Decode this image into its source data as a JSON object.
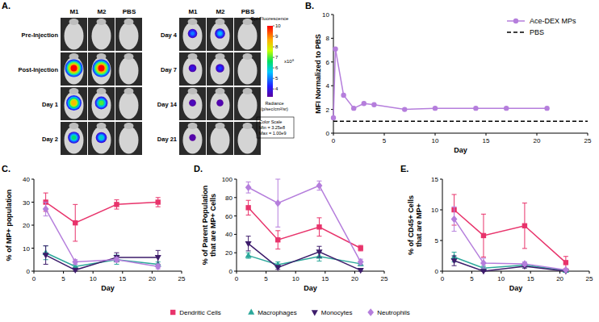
{
  "imaging": {
    "panel": "A.",
    "columns": [
      "M1",
      "M2",
      "PBS"
    ],
    "rows": [
      {
        "label": "Pre-Injection",
        "signal": [
          null,
          null,
          null
        ]
      },
      {
        "label": "Post-Injection",
        "signal": [
          10,
          10,
          null
        ]
      },
      {
        "label": "Day 1",
        "signal": [
          8.5,
          7,
          null
        ]
      },
      {
        "label": "Day 2",
        "signal": [
          6.5,
          6,
          null
        ]
      },
      {
        "label": "Day 4",
        "signal": [
          5,
          5.5,
          null
        ]
      },
      {
        "label": "Day 7",
        "signal": [
          4,
          4.5,
          null
        ]
      },
      {
        "label": "Day 14",
        "signal": [
          3.6,
          3.5,
          null
        ]
      },
      {
        "label": "Day 21",
        "signal": [
          3.4,
          null,
          null
        ]
      }
    ],
    "colorbar": {
      "title": "Epi-Fluorescence",
      "exponent": "x10⁸",
      "range": [
        3.25,
        10
      ],
      "ticks": [
        4,
        5,
        6,
        7,
        8,
        9,
        10
      ],
      "unit": "Radiance\n(p/sec/cm²/sr)",
      "scale_title": "Color Scale",
      "scale_lines": [
        "Min = 3.25e8",
        "Max = 1.00e9"
      ]
    }
  },
  "chart_data": [
    {
      "type": "line",
      "panel": "B.",
      "x_label": "Day",
      "y_label": "MFI Normalized to PBS",
      "xlim": [
        0,
        25
      ],
      "xticks": [
        0,
        5,
        10,
        15,
        20,
        25
      ],
      "ylim": [
        0,
        10
      ],
      "yticks": [
        0,
        2,
        4,
        6,
        8,
        10
      ],
      "legend": "top-right",
      "series": [
        {
          "name": "Ace-DEX MPs",
          "color": "#B57EDC",
          "marker": "circle",
          "line_style": "solid",
          "x": [
            0,
            0.2,
            1,
            2,
            3,
            4,
            7,
            10,
            14,
            17,
            21
          ],
          "values": [
            1.3,
            7.1,
            3.2,
            2.1,
            2.5,
            2.4,
            2.0,
            2.1,
            2.1,
            2.1,
            2.1
          ]
        },
        {
          "name": "PBS",
          "color": "#000000",
          "marker": "none",
          "line_style": "dashed",
          "x": [
            0,
            25
          ],
          "values": [
            1,
            1
          ]
        }
      ]
    },
    {
      "type": "line",
      "panel": "C.",
      "x_label": "Day",
      "y_label": "% of MP+ population",
      "xlim": [
        0,
        25
      ],
      "xticks": [
        0,
        5,
        10,
        15,
        20,
        25
      ],
      "ylim": [
        0,
        40
      ],
      "yticks": [
        0,
        10,
        20,
        30,
        40
      ],
      "legend": "bottom",
      "x": [
        2,
        7,
        14,
        21
      ],
      "series": [
        {
          "name": "Dendritic Cells",
          "color": "#E8336B",
          "marker": "square",
          "values": [
            30,
            21,
            29,
            30
          ],
          "errors": [
            4,
            8,
            2,
            2
          ]
        },
        {
          "name": "Macrophages",
          "color": "#2BA89A",
          "marker": "triangle",
          "values": [
            8,
            2,
            5,
            3
          ],
          "errors": [
            3,
            1,
            2,
            1
          ]
        },
        {
          "name": "Monocytes",
          "color": "#3D1C6B",
          "marker": "triangle-down",
          "values": [
            7,
            0.5,
            6,
            6
          ],
          "errors": [
            4,
            0.5,
            2,
            3
          ]
        },
        {
          "name": "Neutrophils",
          "color": "#B57EDC",
          "marker": "diamond",
          "values": [
            27,
            4,
            5,
            2
          ],
          "errors": [
            3,
            1,
            1,
            1
          ]
        }
      ]
    },
    {
      "type": "line",
      "panel": "D.",
      "x_label": "Day",
      "y_label": "% of Parent Population\nthat are MP+ Cells",
      "xlim": [
        0,
        25
      ],
      "xticks": [
        0,
        5,
        10,
        15,
        20,
        25
      ],
      "ylim": [
        0,
        100
      ],
      "yticks": [
        0,
        20,
        40,
        60,
        80,
        100
      ],
      "x": [
        2,
        7,
        14,
        21
      ],
      "series": [
        {
          "color": "#E8336B",
          "marker": "square",
          "values": [
            69,
            34,
            48,
            25
          ],
          "errors": [
            8,
            10,
            10,
            3
          ]
        },
        {
          "color": "#2BA89A",
          "marker": "triangle",
          "values": [
            17,
            7,
            16,
            8
          ],
          "errors": [
            3,
            3,
            5,
            2
          ]
        },
        {
          "color": "#3D1C6B",
          "marker": "triangle-down",
          "values": [
            30,
            4,
            21,
            1
          ],
          "errors": [
            8,
            2,
            6,
            1
          ]
        },
        {
          "color": "#B57EDC",
          "marker": "diamond",
          "values": [
            91,
            74,
            93,
            10
          ],
          "errors": [
            6,
            26,
            5,
            3
          ]
        }
      ]
    },
    {
      "type": "line",
      "panel": "E.",
      "x_label": "Day",
      "y_label": "% of CD45+ Cells\nthat are MP+",
      "xlim": [
        0,
        25
      ],
      "xticks": [
        0,
        5,
        10,
        15,
        20,
        25
      ],
      "ylim": [
        0,
        15
      ],
      "yticks": [
        0,
        5,
        10,
        15
      ],
      "x": [
        2,
        7,
        14,
        21
      ],
      "series": [
        {
          "color": "#E8336B",
          "marker": "square",
          "values": [
            10,
            5.8,
            7.4,
            1.4
          ],
          "errors": [
            2.5,
            3.5,
            3.7,
            1
          ]
        },
        {
          "color": "#2BA89A",
          "marker": "triangle",
          "values": [
            2.3,
            0.5,
            1,
            0.1
          ],
          "errors": [
            0.8,
            0.3,
            0.3,
            0.1
          ]
        },
        {
          "color": "#3D1C6B",
          "marker": "triangle-down",
          "values": [
            1.7,
            0,
            0.8,
            0
          ],
          "errors": [
            0.8,
            0,
            0.3,
            0
          ]
        },
        {
          "color": "#B57EDC",
          "marker": "diamond",
          "values": [
            8.5,
            1.3,
            1.2,
            0.2
          ],
          "errors": [
            2,
            0.8,
            0.3,
            0.1
          ]
        }
      ]
    }
  ]
}
